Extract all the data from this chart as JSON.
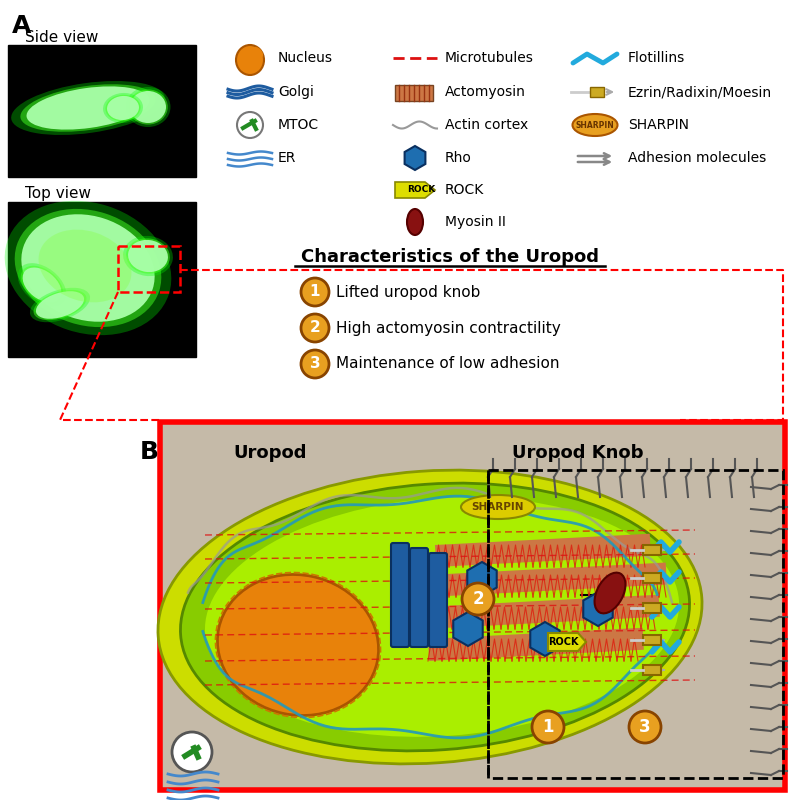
{
  "bg_color": "#FFFFFF",
  "panel_b_bg": "#C5BAA8",
  "nucleus_orange": "#E8820A",
  "nucleus_edge": "#AA5500",
  "golgi_blue": "#1E5CA0",
  "mtoc_green": "#228B22",
  "er_blue": "#4488CC",
  "microtubule_red": "#DD1111",
  "actomyosin_brown": "#CC7744",
  "actin_gray": "#999999",
  "rho_blue": "#1E6EB0",
  "rock_yellow": "#DDDD00",
  "myosin_red": "#881111",
  "flotillin_cyan": "#22AADD",
  "ezrin_yellow": "#CCAA22",
  "sharpin_orange": "#E8A020",
  "sharpin_yellow": "#DDCC00",
  "adhesion_gray": "#888888",
  "panel_a_label": "A",
  "panel_b_label": "B",
  "side_view": "Side view",
  "top_view": "Top view",
  "uropod": "Uropod",
  "uropod_knob": "Uropod Knob",
  "char_title": "Characteristics of the Uropod",
  "char1": "Lifted uropod knob",
  "char2": "High actomyosin contractility",
  "char3": "Maintenance of low adhesion",
  "leg_col1": [
    "Nucleus",
    "Golgi",
    "MTOC",
    "ER"
  ],
  "leg_col2": [
    "Microtubules",
    "Actomyosin",
    "Actin cortex",
    "Rho",
    "ROCK",
    "Myosin II"
  ],
  "leg_col3": [
    "Flotillins",
    "Ezrin/Radixin/Moesin",
    "SHARPIN",
    "Adhesion molecules"
  ]
}
